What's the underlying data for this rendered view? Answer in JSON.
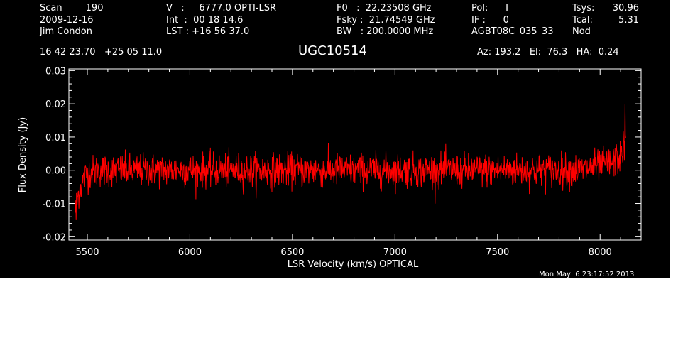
{
  "header": {
    "col1": [
      "Scan        190",
      "2009-12-16",
      "Jim Condon"
    ],
    "col2": [
      "V   :     6777.0 OPTI-LSR",
      "Int  :  00 18 14.6",
      "LST : +16 56 37.0"
    ],
    "col3": [
      "F0   :  22.23508 GHz",
      "Fsky :  21.74549 GHz",
      "BW   : 200.0000 MHz"
    ],
    "col4": [
      "Pol:      I",
      "IF :      0",
      "AGBT08C_035_33"
    ],
    "col5": [
      "Tsys:",
      "Tcal:",
      "Nod"
    ],
    "col6": [
      "30.96",
      "5.31",
      ""
    ],
    "coords": "16 42 23.70   +25 05 11.0",
    "source": "UGC10514",
    "azelha": "Az: 193.2   El:  76.3   HA:  0.24"
  },
  "timestamp": "Mon May  6 23:17:52 2013",
  "colors": {
    "background": "#000000",
    "foreground": "#ffffff",
    "series": "#ff0000"
  },
  "chart_data": {
    "type": "line",
    "xlabel": "LSR Velocity (km/s) OPTICAL",
    "ylabel": "Flux Density (Jy)",
    "xlim": [
      5410,
      8200
    ],
    "ylim": [
      -0.021,
      0.0305
    ],
    "x_ticks": [
      5500,
      6000,
      6500,
      7000,
      7500,
      8000
    ],
    "x_tick_labels": [
      "5500",
      "6000",
      "6500",
      "7000",
      "7500",
      "8000"
    ],
    "y_ticks": [
      -0.02,
      -0.01,
      0.0,
      0.01,
      0.02,
      0.03
    ],
    "y_tick_labels": [
      "-0.02",
      "-0.01",
      "0.00",
      "0.01",
      "0.02",
      "0.03"
    ],
    "grid": false,
    "series": [
      {
        "x_range": [
          5442,
          8125
        ],
        "x": [
          5442,
          5460,
          5480,
          5500,
          5550,
          5600,
          6000,
          6500,
          7000,
          7500,
          7900,
          8050,
          8100,
          8125
        ],
        "baseline": [
          -0.012,
          -0.006,
          -0.003,
          -0.001,
          0.0,
          0.0,
          0.0,
          0.0,
          0.0,
          0.0,
          0.0,
          0.002,
          0.004,
          0.008
        ],
        "rms": 0.0025,
        "min": -0.015,
        "max": 0.02
      }
    ]
  }
}
